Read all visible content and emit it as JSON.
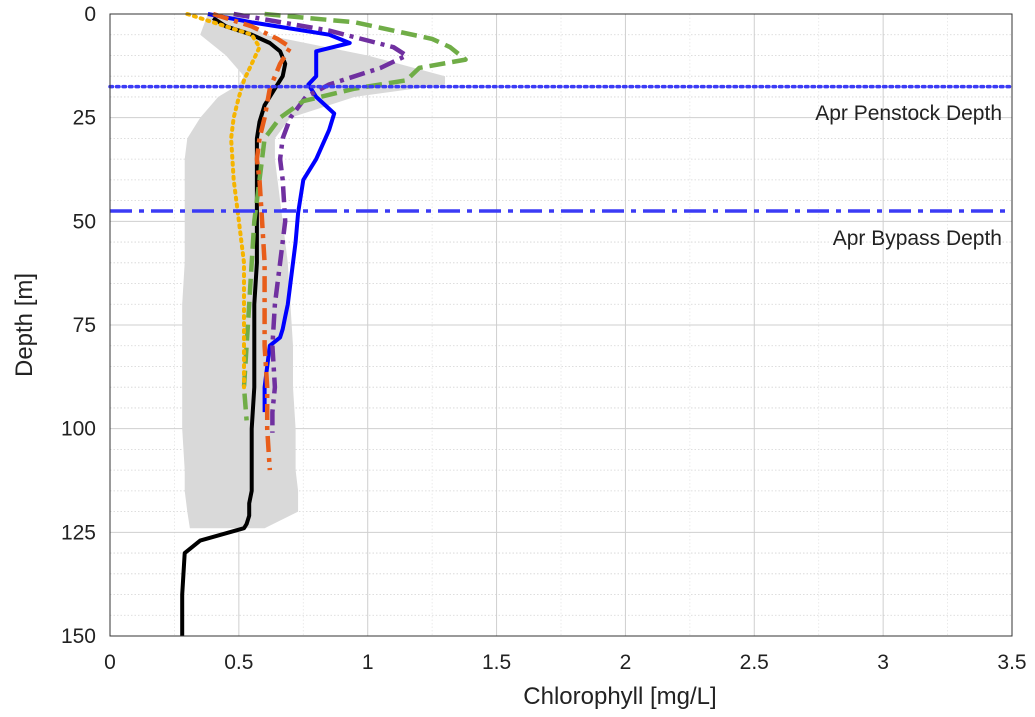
{
  "chart_data": {
    "type": "line",
    "title": "",
    "xlabel": "Chlorophyll  [mg/L]",
    "ylabel": "Depth [m]",
    "xlim": [
      0,
      3.5
    ],
    "ylim": [
      0,
      150
    ],
    "y_inverted": true,
    "x_ticks": [
      "0",
      "0.5",
      "1",
      "1.5",
      "2",
      "2.5",
      "3",
      "3.5"
    ],
    "y_ticks": [
      "0",
      "25",
      "50",
      "75",
      "100",
      "125",
      "150"
    ],
    "grid": true,
    "minor_grid": true,
    "reference_lines": [
      {
        "label": "Apr Penstock Depth",
        "depth": 17.5,
        "style": "dotted",
        "color": "#3b3bf5"
      },
      {
        "label": "Apr Bypass Depth",
        "depth": 47.5,
        "style": "dashdot",
        "color": "#3b3bf5"
      }
    ],
    "band": {
      "color": "#d9d9d9",
      "depth": [
        0,
        5,
        10,
        15,
        17,
        20,
        25,
        30,
        35,
        40,
        50,
        60,
        70,
        80,
        90,
        100,
        110,
        115,
        120,
        124
      ],
      "lower": [
        0.38,
        0.35,
        0.45,
        0.52,
        0.5,
        0.42,
        0.35,
        0.3,
        0.29,
        0.29,
        0.29,
        0.29,
        0.28,
        0.28,
        0.28,
        0.28,
        0.29,
        0.29,
        0.3,
        0.31
      ],
      "upper": [
        0.5,
        0.6,
        1.0,
        1.3,
        1.3,
        0.95,
        0.7,
        0.64,
        0.64,
        0.65,
        0.67,
        0.69,
        0.7,
        0.71,
        0.71,
        0.72,
        0.72,
        0.73,
        0.73,
        0.6
      ]
    },
    "series": [
      {
        "color": "#000000",
        "style": "solid",
        "x": [
          0.4,
          0.45,
          0.55,
          0.62,
          0.66,
          0.68,
          0.67,
          0.64,
          0.6,
          0.58,
          0.57,
          0.57,
          0.57,
          0.57,
          0.56,
          0.56,
          0.56,
          0.55,
          0.55,
          0.55,
          0.55,
          0.54,
          0.54,
          0.53,
          0.52,
          0.35,
          0.29,
          0.28,
          0.28
        ],
        "depth": [
          1,
          3,
          5,
          7,
          9,
          12,
          15,
          18,
          22,
          26,
          30,
          40,
          50,
          60,
          70,
          80,
          90,
          100,
          110,
          113,
          115,
          118,
          121,
          123,
          124,
          127,
          130,
          140,
          150
        ]
      },
      {
        "color": "#0000ff",
        "style": "solid",
        "x": [
          0.38,
          0.55,
          0.85,
          0.93,
          0.8,
          0.8,
          0.8,
          0.77,
          0.8,
          0.87,
          0.85,
          0.8,
          0.75,
          0.73,
          0.72,
          0.7,
          0.69,
          0.68,
          0.67,
          0.66,
          0.62,
          0.61,
          0.6,
          0.6
        ],
        "depth": [
          0,
          2,
          5,
          7,
          9,
          12,
          15,
          17,
          20,
          24,
          28,
          35,
          40,
          48,
          55,
          65,
          70,
          73,
          76,
          78,
          80,
          85,
          90,
          96
        ]
      },
      {
        "color": "#7030a0",
        "style": "dashdot",
        "x": [
          0.48,
          0.85,
          1.1,
          1.15,
          1.05,
          0.85,
          0.76,
          0.7,
          0.67,
          0.66,
          0.67,
          0.68,
          0.66,
          0.64,
          0.63,
          0.64,
          0.63,
          0.63
        ],
        "depth": [
          0,
          4,
          8,
          10,
          13,
          17,
          20,
          25,
          30,
          35,
          40,
          50,
          60,
          70,
          80,
          90,
          96,
          101
        ]
      },
      {
        "color": "#70ad47",
        "style": "dashed",
        "x": [
          0.6,
          0.95,
          1.25,
          1.32,
          1.38,
          1.2,
          1.15,
          0.95,
          0.75,
          0.66,
          0.6,
          0.58,
          0.56,
          0.55,
          0.54,
          0.53,
          0.52,
          0.53
        ],
        "depth": [
          0,
          2,
          6,
          8,
          11,
          13,
          16,
          18,
          21,
          25,
          30,
          40,
          50,
          60,
          70,
          80,
          90,
          98
        ]
      },
      {
        "color": "#e85d1a",
        "style": "dashdot",
        "x": [
          0.4,
          0.55,
          0.65,
          0.7,
          0.66,
          0.62,
          0.6,
          0.58,
          0.57,
          0.58,
          0.59,
          0.6,
          0.6,
          0.6,
          0.61,
          0.61,
          0.62
        ],
        "depth": [
          0,
          3,
          6,
          8,
          12,
          18,
          25,
          30,
          35,
          40,
          50,
          60,
          70,
          80,
          90,
          100,
          110
        ]
      },
      {
        "color": "#f5b400",
        "style": "dotted",
        "x": [
          0.3,
          0.4,
          0.55,
          0.58,
          0.55,
          0.52,
          0.5,
          0.48,
          0.47,
          0.48,
          0.5,
          0.52,
          0.52,
          0.52,
          0.52
        ],
        "depth": [
          0,
          2,
          5,
          8,
          12,
          16,
          20,
          25,
          30,
          40,
          50,
          60,
          70,
          80,
          90
        ]
      }
    ]
  }
}
